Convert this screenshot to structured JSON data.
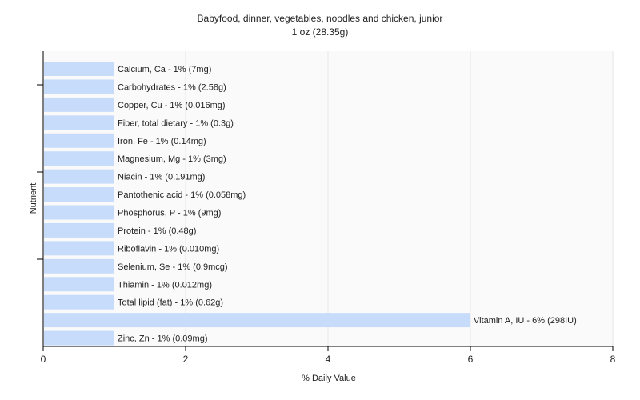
{
  "chart_data": {
    "type": "bar",
    "orientation": "horizontal",
    "title": "Babyfood, dinner, vegetables, noodles and chicken, junior",
    "subtitle": "1 oz (28.35g)",
    "xlabel": "% Daily Value",
    "ylabel": "Nutrient",
    "xlim": [
      0,
      8
    ],
    "xticks": [
      0,
      2,
      4,
      6,
      8
    ],
    "grid": true,
    "bar_color": "#c6dcfa",
    "categories": [
      "Calcium, Ca",
      "Carbohydrates",
      "Copper, Cu",
      "Fiber, total dietary",
      "Iron, Fe",
      "Magnesium, Mg",
      "Niacin",
      "Pantothenic acid",
      "Phosphorus, P",
      "Protein",
      "Riboflavin",
      "Selenium, Se",
      "Thiamin",
      "Total lipid (fat)",
      "Vitamin A, IU",
      "Zinc, Zn"
    ],
    "values": [
      1,
      1,
      1,
      1,
      1,
      1,
      1,
      1,
      1,
      1,
      1,
      1,
      1,
      1,
      6,
      1
    ],
    "labels": [
      "Calcium, Ca - 1% (7mg)",
      "Carbohydrates - 1% (2.58g)",
      "Copper, Cu - 1% (0.016mg)",
      "Fiber, total dietary - 1% (0.3g)",
      "Iron, Fe - 1% (0.14mg)",
      "Magnesium, Mg - 1% (3mg)",
      "Niacin - 1% (0.191mg)",
      "Pantothenic acid - 1% (0.058mg)",
      "Phosphorus, P - 1% (9mg)",
      "Protein - 1% (0.48g)",
      "Riboflavin - 1% (0.010mg)",
      "Selenium, Se - 1% (0.9mcg)",
      "Thiamin - 1% (0.012mg)",
      "Total lipid (fat) - 1% (0.62g)",
      "Vitamin A, IU - 6% (298IU)",
      "Zinc, Zn - 1% (0.09mg)"
    ]
  }
}
